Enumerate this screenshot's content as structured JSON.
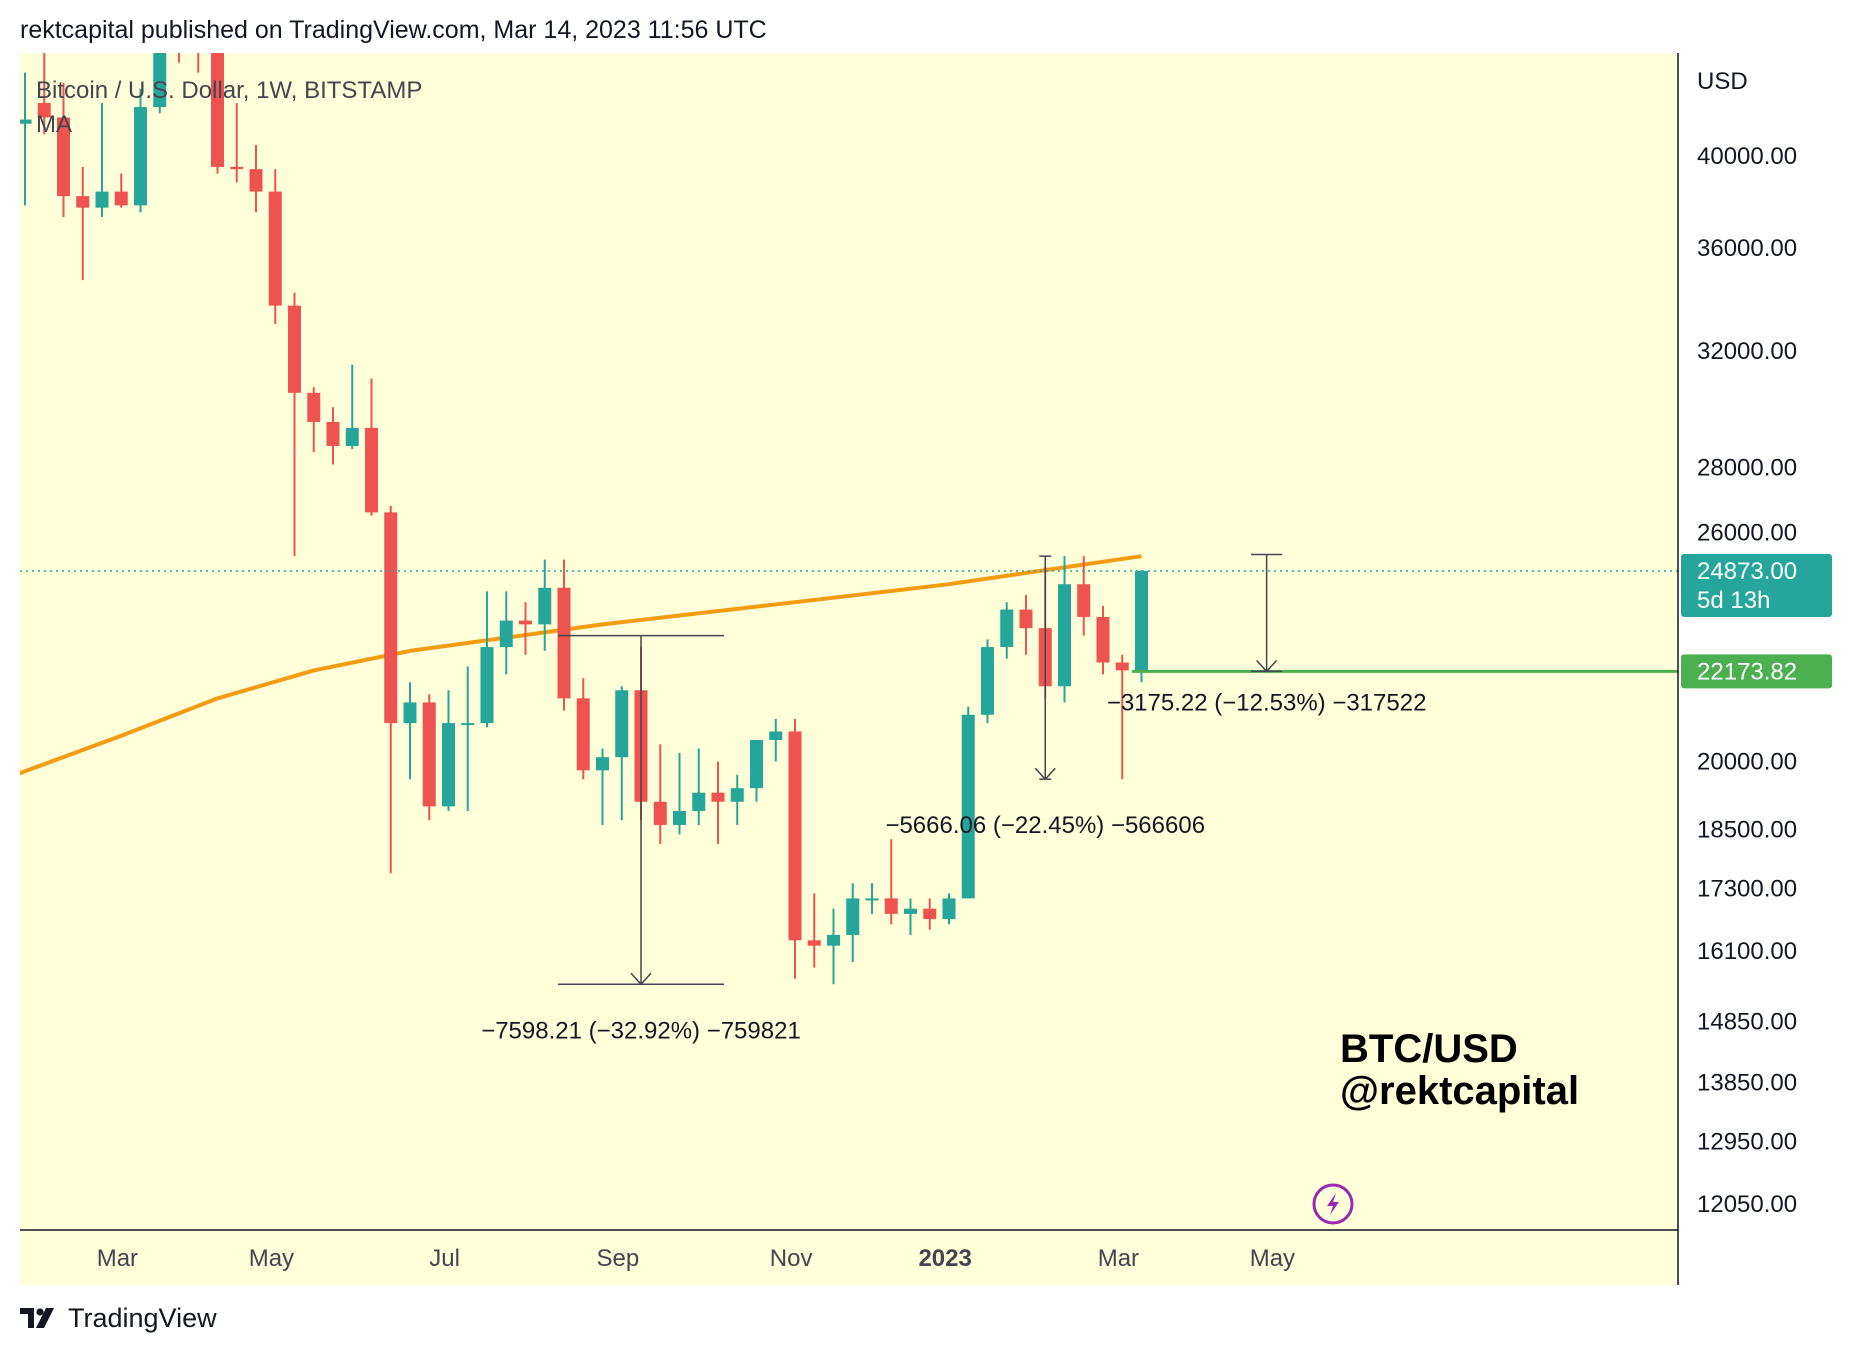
{
  "header": {
    "text": "rektcapital published on TradingView.com, Mar 14, 2023 11:56 UTC"
  },
  "footer": {
    "brand": "TradingView",
    "logo_icon": "tradingview-logo-icon"
  },
  "colors": {
    "background": "#FFFFD9",
    "up": "#26A69A",
    "down": "#EF5350",
    "ma": "#F39C12",
    "support": "#4CAF50",
    "price_tag": "#26A69A",
    "axis_line": "#131722"
  },
  "chart_data": {
    "type": "candlestick",
    "symbol_line": "Bitcoin / U.S. Dollar, 1W, BITSTAMP",
    "indicator_line": "MA",
    "currency": "USD",
    "ylim": [
      11700,
      45000
    ],
    "y_scale": "log",
    "y_ticks": [
      "40000.00",
      "36000.00",
      "32000.00",
      "28000.00",
      "26000.00",
      "20000.00",
      "18500.00",
      "17300.00",
      "16100.00",
      "14850.00",
      "13850.00",
      "12950.00",
      "12050.00"
    ],
    "x_ticks": [
      {
        "label": "Mar",
        "bar": 4.8,
        "bold": false
      },
      {
        "label": "May",
        "bar": 12.8,
        "bold": false
      },
      {
        "label": "Jul",
        "bar": 21.8,
        "bold": false
      },
      {
        "label": "Sep",
        "bar": 30.8,
        "bold": false
      },
      {
        "label": "Nov",
        "bar": 39.8,
        "bold": false
      },
      {
        "label": "2023",
        "bar": 47.8,
        "bold": true
      },
      {
        "label": "Mar",
        "bar": 56.8,
        "bold": false
      },
      {
        "label": "May",
        "bar": 64.8,
        "bold": false
      }
    ],
    "candles": [
      {
        "o": 41500,
        "h": 44000,
        "l": 37800,
        "c": 41700
      },
      {
        "o": 42500,
        "h": 45000,
        "l": 41000,
        "c": 41800
      },
      {
        "o": 41800,
        "h": 43500,
        "l": 37300,
        "c": 38200
      },
      {
        "o": 38200,
        "h": 39500,
        "l": 34700,
        "c": 37700
      },
      {
        "o": 37700,
        "h": 42500,
        "l": 37300,
        "c": 38400
      },
      {
        "o": 38400,
        "h": 39200,
        "l": 37700,
        "c": 37800
      },
      {
        "o": 37800,
        "h": 43200,
        "l": 37500,
        "c": 42300
      },
      {
        "o": 42300,
        "h": 47500,
        "l": 42000,
        "c": 46500
      },
      {
        "o": 46500,
        "h": 47200,
        "l": 44500,
        "c": 45800
      },
      {
        "o": 45800,
        "h": 46500,
        "l": 44000,
        "c": 45400
      },
      {
        "o": 45400,
        "h": 45800,
        "l": 39200,
        "c": 39500
      },
      {
        "o": 39500,
        "h": 42500,
        "l": 38800,
        "c": 39400
      },
      {
        "o": 39400,
        "h": 40500,
        "l": 37500,
        "c": 38400
      },
      {
        "o": 38400,
        "h": 39400,
        "l": 33000,
        "c": 33700
      },
      {
        "o": 33700,
        "h": 34200,
        "l": 25300,
        "c": 30500
      },
      {
        "o": 30500,
        "h": 30700,
        "l": 28500,
        "c": 29500
      },
      {
        "o": 29500,
        "h": 30000,
        "l": 28100,
        "c": 28700
      },
      {
        "o": 28700,
        "h": 31500,
        "l": 28600,
        "c": 29300
      },
      {
        "o": 29300,
        "h": 31000,
        "l": 26500,
        "c": 26600
      },
      {
        "o": 26600,
        "h": 26800,
        "l": 17600,
        "c": 20900
      },
      {
        "o": 20900,
        "h": 21900,
        "l": 19600,
        "c": 21400
      },
      {
        "o": 21400,
        "h": 21600,
        "l": 18700,
        "c": 19000
      },
      {
        "o": 19000,
        "h": 21700,
        "l": 18900,
        "c": 20900
      },
      {
        "o": 20900,
        "h": 22300,
        "l": 18900,
        "c": 20900
      },
      {
        "o": 20900,
        "h": 24300,
        "l": 20800,
        "c": 22800
      },
      {
        "o": 22800,
        "h": 24300,
        "l": 22100,
        "c": 23500
      },
      {
        "o": 23500,
        "h": 24000,
        "l": 22600,
        "c": 23400
      },
      {
        "o": 23400,
        "h": 25200,
        "l": 22700,
        "c": 24400
      },
      {
        "o": 24400,
        "h": 25200,
        "l": 21200,
        "c": 21500
      },
      {
        "o": 21500,
        "h": 22000,
        "l": 19600,
        "c": 19800
      },
      {
        "o": 19800,
        "h": 20300,
        "l": 18600,
        "c": 20100
      },
      {
        "o": 20100,
        "h": 21800,
        "l": 18700,
        "c": 21700
      },
      {
        "o": 21700,
        "h": 22800,
        "l": 18700,
        "c": 19100
      },
      {
        "o": 19100,
        "h": 20400,
        "l": 18200,
        "c": 18600
      },
      {
        "o": 18600,
        "h": 20200,
        "l": 18400,
        "c": 18900
      },
      {
        "o": 18900,
        "h": 20300,
        "l": 18600,
        "c": 19300
      },
      {
        "o": 19300,
        "h": 20000,
        "l": 18200,
        "c": 19100
      },
      {
        "o": 19100,
        "h": 19700,
        "l": 18600,
        "c": 19400
      },
      {
        "o": 19400,
        "h": 20500,
        "l": 19100,
        "c": 20500
      },
      {
        "o": 20500,
        "h": 21000,
        "l": 20000,
        "c": 20700
      },
      {
        "o": 20700,
        "h": 21000,
        "l": 15600,
        "c": 16300
      },
      {
        "o": 16300,
        "h": 17200,
        "l": 15800,
        "c": 16200
      },
      {
        "o": 16200,
        "h": 16900,
        "l": 15500,
        "c": 16400
      },
      {
        "o": 16400,
        "h": 17400,
        "l": 15900,
        "c": 17100
      },
      {
        "o": 17100,
        "h": 17400,
        "l": 16800,
        "c": 17100
      },
      {
        "o": 17100,
        "h": 18300,
        "l": 16600,
        "c": 16800
      },
      {
        "o": 16800,
        "h": 17100,
        "l": 16400,
        "c": 16900
      },
      {
        "o": 16900,
        "h": 17100,
        "l": 16500,
        "c": 16700
      },
      {
        "o": 16700,
        "h": 17200,
        "l": 16600,
        "c": 17100
      },
      {
        "o": 17100,
        "h": 21300,
        "l": 17100,
        "c": 21100
      },
      {
        "o": 21100,
        "h": 23000,
        "l": 20900,
        "c": 22800
      },
      {
        "o": 22800,
        "h": 24000,
        "l": 22500,
        "c": 23800
      },
      {
        "o": 23800,
        "h": 24200,
        "l": 22600,
        "c": 23300
      },
      {
        "o": 23300,
        "h": 25000,
        "l": 21500,
        "c": 21800
      },
      {
        "o": 21800,
        "h": 25300,
        "l": 21400,
        "c": 24500
      },
      {
        "o": 24500,
        "h": 25300,
        "l": 23100,
        "c": 23600
      },
      {
        "o": 23600,
        "h": 23900,
        "l": 22100,
        "c": 22400
      },
      {
        "o": 22400,
        "h": 22600,
        "l": 19600,
        "c": 22200
      },
      {
        "o": 22200,
        "h": 24900,
        "l": 21900,
        "c": 24873
      }
    ],
    "moving_average": {
      "label": "MA",
      "points": [
        {
          "bar": -0.5,
          "value": 19700
        },
        {
          "bar": 5,
          "value": 20600
        },
        {
          "bar": 10,
          "value": 21500
        },
        {
          "bar": 15,
          "value": 22200
        },
        {
          "bar": 20,
          "value": 22700
        },
        {
          "bar": 30,
          "value": 23400
        },
        {
          "bar": 40,
          "value": 24000
        },
        {
          "bar": 48,
          "value": 24500
        },
        {
          "bar": 53,
          "value": 24900
        },
        {
          "bar": 58,
          "value": 25300
        }
      ]
    },
    "current_price": {
      "value": 24873,
      "label": "24873.00",
      "countdown": "5d 13h"
    },
    "support_level": {
      "value": 22173.82,
      "label": "22173.82",
      "from_bar": 57.5
    },
    "measurements": [
      {
        "text": "−7598.21 (−32.92%) −759821",
        "bar_from": 28,
        "bar_to": 36,
        "bar_arrow": 32,
        "from": 23100,
        "to": 15500,
        "text_price": 14700
      },
      {
        "text": "−5666.06 (−22.45%) −566606",
        "bar_from": 53,
        "bar_to": 53,
        "bar_arrow": 53,
        "from": 25300,
        "to": 19600,
        "text_price": 18600
      },
      {
        "text": "−3175.22 (−12.53%) −317522",
        "bar_from": 64,
        "bar_to": 65,
        "bar_arrow": 64.5,
        "from": 25349,
        "to": 22173.82,
        "text_price": 21400
      }
    ],
    "watermark": [
      "BTC/USD",
      "@rektcapital"
    ],
    "grid": false
  }
}
